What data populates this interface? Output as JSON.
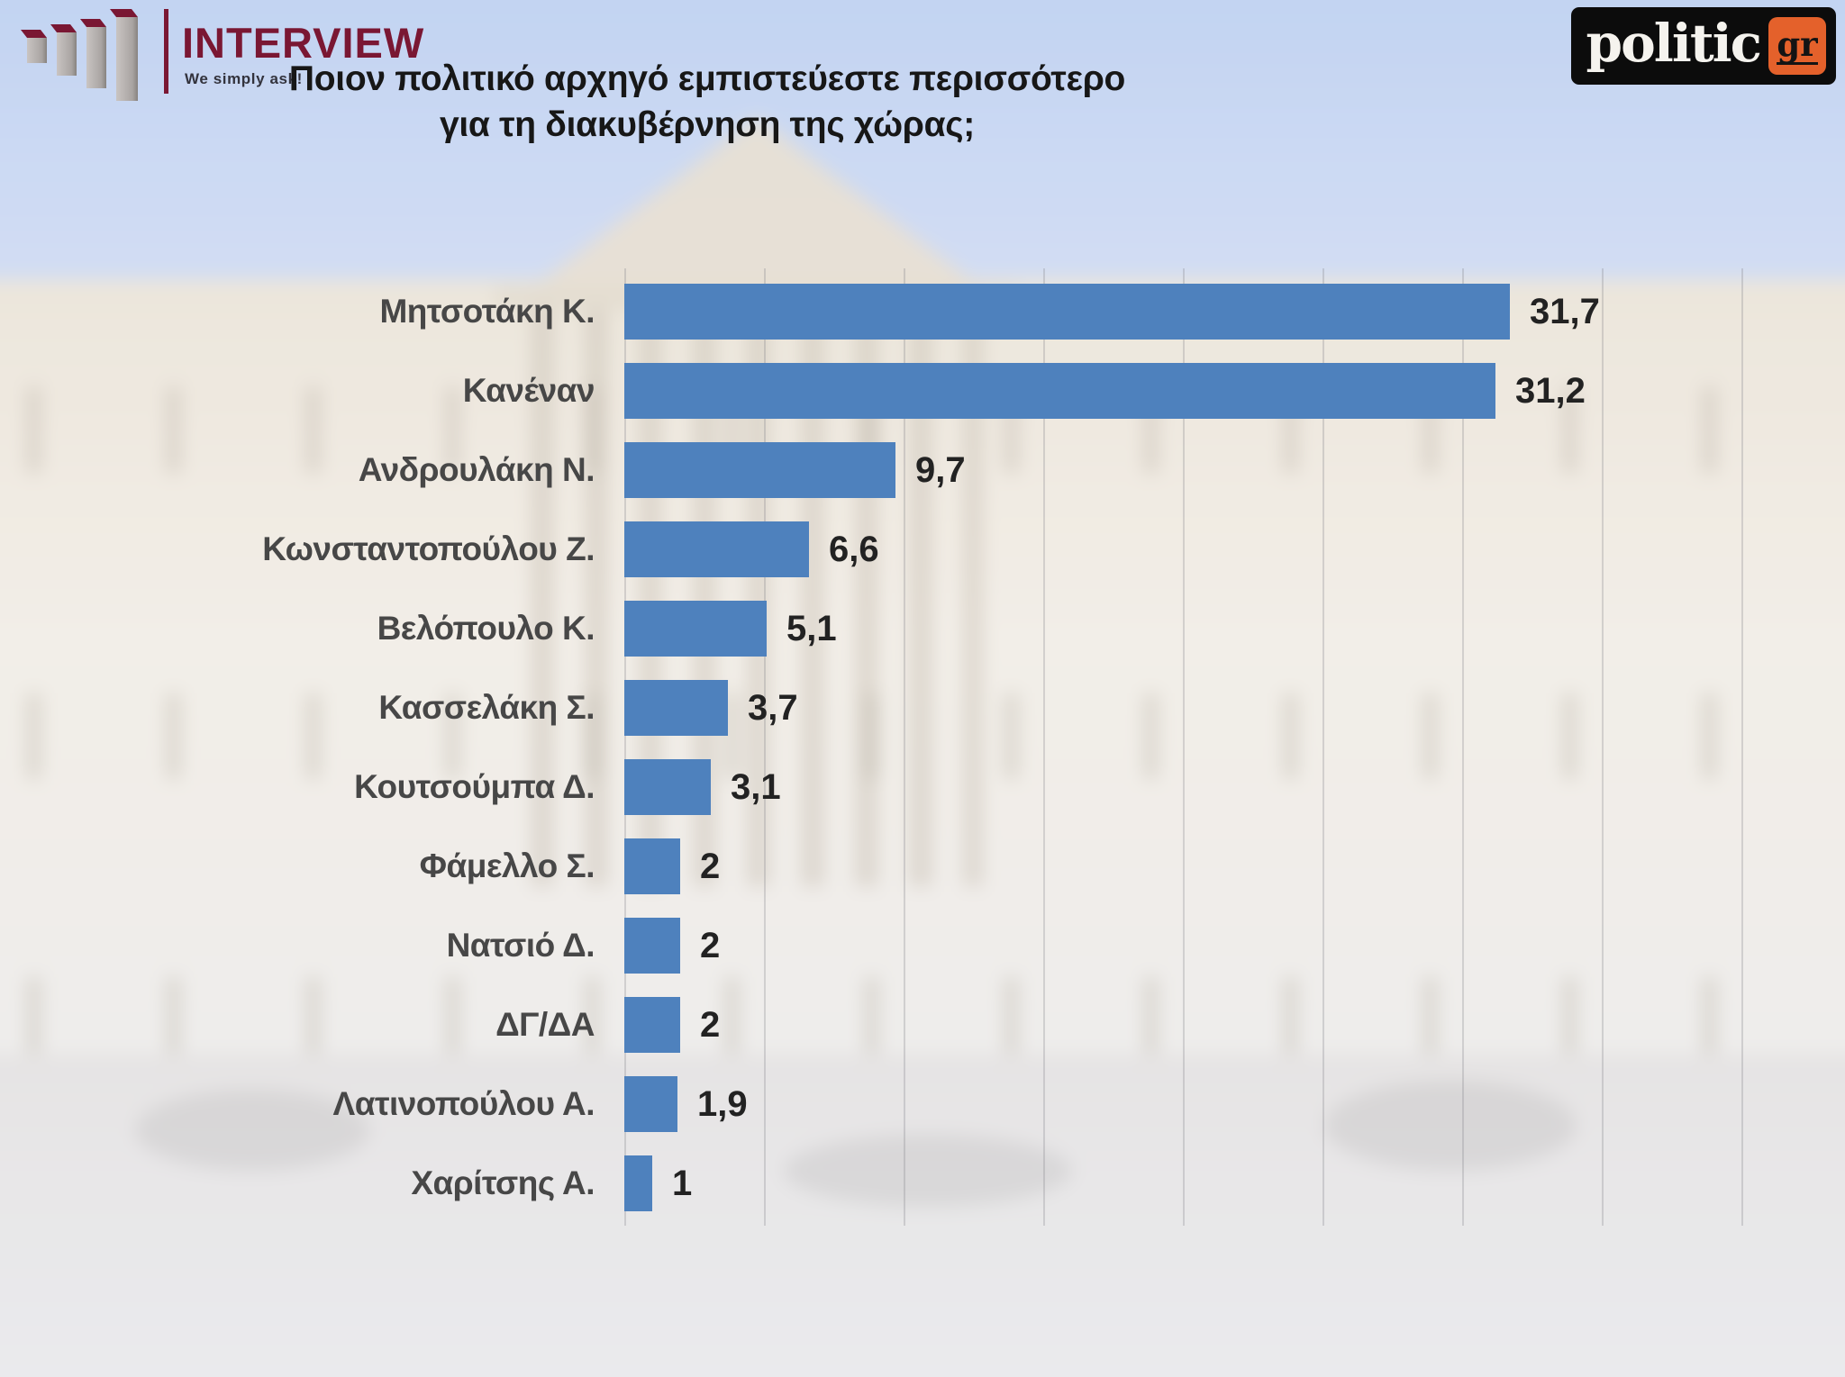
{
  "header": {
    "interview": {
      "brand": "INTERVIEW",
      "tagline": "We simply ask!",
      "brand_color": "#7a1733"
    },
    "politic": {
      "brand": "politic",
      "badge": "gr",
      "badge_color": "#e4612b"
    }
  },
  "title": {
    "line1": "Ποιον πολιτικό αρχηγό εμπιστεύεστε περισσότερο",
    "line2": "για τη διακυβέρνηση της χώρας;"
  },
  "chart_data": {
    "type": "bar",
    "orientation": "horizontal",
    "title": "Ποιον πολιτικό αρχηγό εμπιστεύεστε περισσότερο για τη διακυβέρνηση της χώρας;",
    "categories": [
      "Μητσοτάκη Κ.",
      "Κανέναν",
      "Ανδρουλάκη Ν.",
      "Κωνσταντοπούλου Ζ.",
      "Βελόπουλο Κ.",
      "Κασσελάκη Σ.",
      "Κουτσούμπα Δ.",
      "Φάμελλο Σ.",
      "Νατσιό Δ.",
      "ΔΓ/ΔΑ",
      "Λατινοπούλου Α.",
      "Χαρίτσης Α."
    ],
    "values": [
      31.7,
      31.2,
      9.7,
      6.6,
      5.1,
      3.7,
      3.1,
      2,
      2,
      2,
      1.9,
      1
    ],
    "value_labels": [
      "31,7",
      "31,2",
      "9,7",
      "6,6",
      "5,1",
      "3,7",
      "3,1",
      "2",
      "2",
      "2",
      "1,9",
      "1"
    ],
    "xlim": [
      0,
      43
    ],
    "gridline_step": 5,
    "bar_color": "#4e81bd",
    "grid": "vertical-faint",
    "legend": "none",
    "value_label_position": "end-of-bar"
  }
}
